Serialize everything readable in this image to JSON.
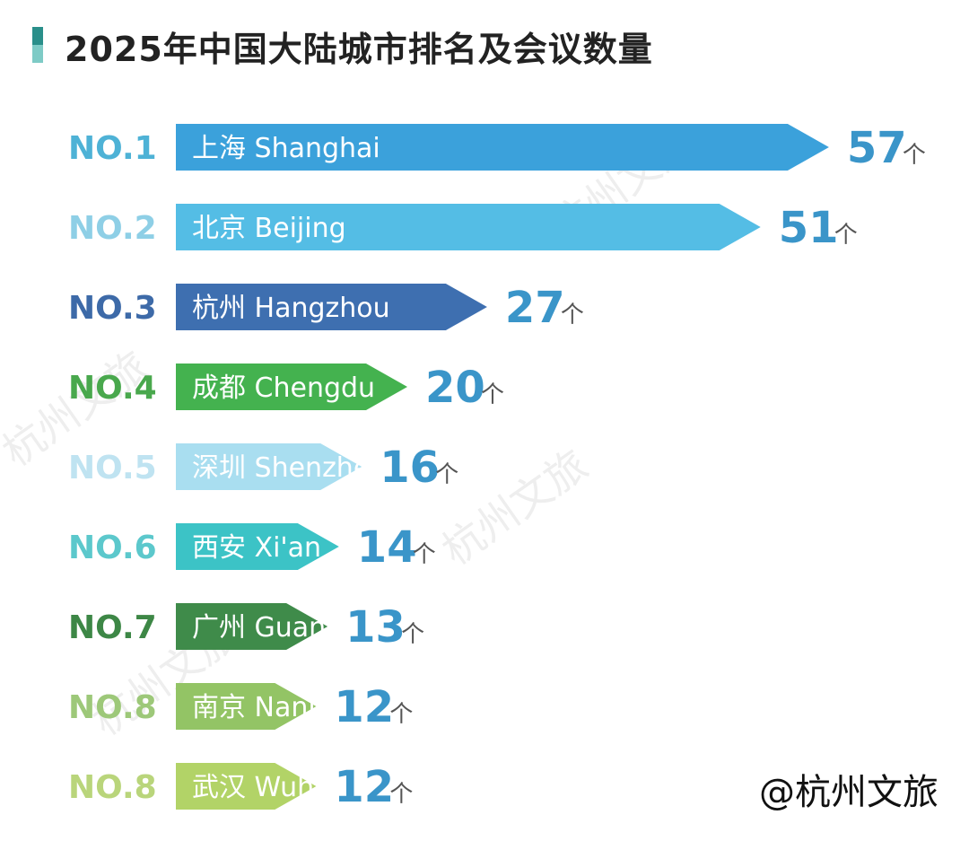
{
  "title": "2025年中国大陆城市排名及会议数量",
  "accent_colors": {
    "title_bar_top": "#2a8f8a",
    "title_bar_bottom": "#7ecbc6"
  },
  "credit": "@杭州文旅",
  "watermark": "杭州文旅",
  "unit_label": "个",
  "chart_data": {
    "type": "bar",
    "orientation": "horizontal",
    "title": "2025年中国大陆城市排名及会议数量",
    "categories": [
      "上海 Shanghai",
      "北京 Beijing",
      "杭州 Hangzhou",
      "成都 Chengdu",
      "深圳 Shenzhen",
      "西安 Xi'an",
      "广州 Guangzhou",
      "南京 Nanjing",
      "武汉 Wuhan"
    ],
    "ranks": [
      "NO.1",
      "NO.2",
      "NO.3",
      "NO.4",
      "NO.5",
      "NO.6",
      "NO.7",
      "NO.8",
      "NO.8"
    ],
    "values": [
      57,
      51,
      27,
      20,
      16,
      14,
      13,
      12,
      12
    ],
    "unit": "个",
    "colors": [
      "#3ba1db",
      "#54bde5",
      "#3e6fb0",
      "#44b24f",
      "#a9def0",
      "#3cc3c6",
      "#3f8b4a",
      "#93c465",
      "#b2d367"
    ],
    "rank_colors": [
      "#4eb2d6",
      "#8ecfe6",
      "#3d6aa8",
      "#49a84d",
      "#bfe3f1",
      "#5cc8cc",
      "#3d8746",
      "#9dc879",
      "#b9d57b"
    ],
    "value_color": "#3a95c9",
    "grid": false,
    "legend": "none"
  }
}
